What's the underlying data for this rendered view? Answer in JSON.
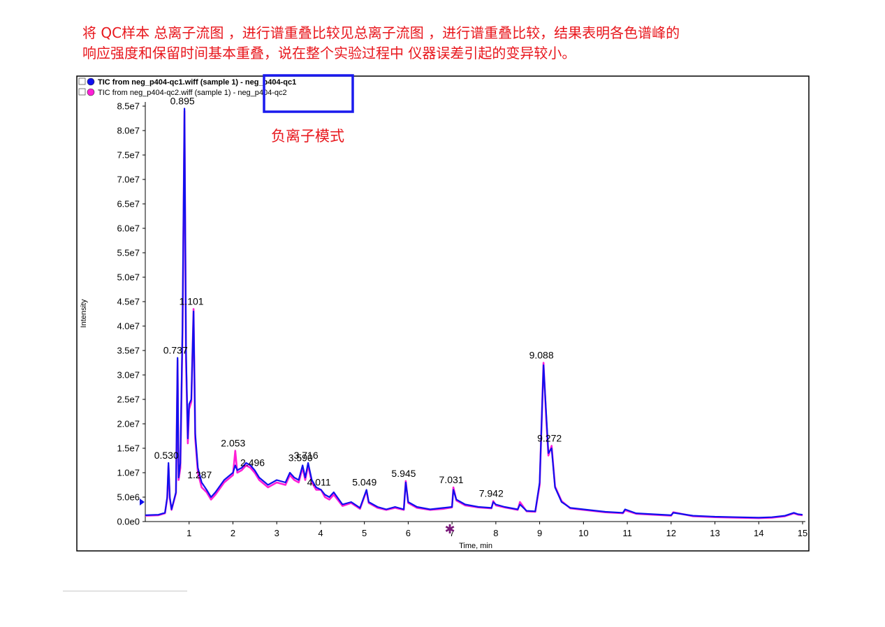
{
  "caption": {
    "line1": "将 QC样本 总离子流图 ，进行谱重叠比较见总离子流图 ，进行谱重叠比较，结果表明各色谱峰的",
    "line2": "响应强度和保留时间基本重叠，说在整个实验过程中 仪器误差引起的变异较小。"
  },
  "annotation": "负离子模式",
  "colors": {
    "caption": "#e8161c",
    "annotation": "#e8161c",
    "highlight_box": "#1a1aee",
    "series_qc1": "#1010ee",
    "series_qc2": "#ff1fd6"
  },
  "chart_data": {
    "type": "line",
    "xlabel": "Time, min",
    "ylabel": "Intensity",
    "xlim": [
      0,
      15
    ],
    "ylim": [
      0,
      85000000.0
    ],
    "x_ticks": [
      1,
      2,
      3,
      4,
      5,
      6,
      7,
      8,
      9,
      10,
      11,
      12,
      13,
      14,
      15
    ],
    "y_ticks": [
      "0.0e0",
      "5.0e6",
      "1.0e7",
      "1.5e7",
      "2.0e7",
      "2.5e7",
      "3.0e7",
      "3.5e7",
      "4.0e7",
      "4.5e7",
      "5.0e7",
      "5.5e7",
      "6.0e7",
      "6.5e7",
      "7.0e7",
      "7.5e7",
      "8.0e7",
      "8.5e7"
    ],
    "legend_position": "top-left",
    "series": [
      {
        "name": "TIC from neg_p404-qc1.wiff (sample 1) - neg_p404-qc1",
        "color": "#1010ee",
        "x": [
          0.0,
          0.3,
          0.45,
          0.5,
          0.53,
          0.56,
          0.6,
          0.7,
          0.737,
          0.76,
          0.8,
          0.85,
          0.895,
          0.93,
          0.97,
          1.0,
          1.05,
          1.101,
          1.14,
          1.2,
          1.287,
          1.4,
          1.5,
          1.6,
          1.8,
          2.0,
          2.053,
          2.1,
          2.2,
          2.3,
          2.4,
          2.496,
          2.6,
          2.8,
          3.0,
          3.2,
          3.3,
          3.4,
          3.5,
          3.59,
          3.65,
          3.716,
          3.8,
          3.9,
          4.011,
          4.1,
          4.2,
          4.3,
          4.5,
          4.7,
          4.9,
          5.049,
          5.1,
          5.3,
          5.5,
          5.7,
          5.9,
          5.945,
          6.0,
          6.2,
          6.5,
          6.8,
          7.0,
          7.031,
          7.1,
          7.3,
          7.6,
          7.9,
          7.942,
          8.0,
          8.2,
          8.5,
          8.55,
          8.7,
          8.9,
          9.0,
          9.088,
          9.15,
          9.2,
          9.272,
          9.35,
          9.5,
          9.7,
          10.0,
          10.5,
          10.9,
          10.95,
          11.2,
          11.6,
          12.0,
          12.05,
          12.5,
          13.0,
          13.5,
          14.0,
          14.3,
          14.6,
          14.8,
          14.9,
          15.0
        ],
        "y": [
          1300000.0,
          1400000.0,
          1800000.0,
          5000000.0,
          12000000.0,
          5000000.0,
          2500000.0,
          6000000.0,
          33500000.0,
          9000000.0,
          12000000.0,
          40000000.0,
          84500000.0,
          35000000.0,
          17000000.0,
          24000000.0,
          25000000.0,
          43000000.0,
          18000000.0,
          11000000.0,
          8000000.0,
          6500000.0,
          5000000.0,
          6000000.0,
          8500000.0,
          10000000.0,
          11500000.0,
          10500000.0,
          11000000.0,
          12000000.0,
          11500000.0,
          10500000.0,
          9000000.0,
          7500000.0,
          8500000.0,
          8000000.0,
          10000000.0,
          9000000.0,
          8500000.0,
          11500000.0,
          9000000.0,
          12000000.0,
          8500000.0,
          7000000.0,
          6500000.0,
          5500000.0,
          5000000.0,
          6000000.0,
          3500000.0,
          4000000.0,
          2800000.0,
          6500000.0,
          4000000.0,
          3000000.0,
          2500000.0,
          3000000.0,
          2500000.0,
          8000000.0,
          4000000.0,
          3000000.0,
          2500000.0,
          2800000.0,
          3000000.0,
          6500000.0,
          4500000.0,
          3500000.0,
          3000000.0,
          2800000.0,
          4000000.0,
          3500000.0,
          3000000.0,
          2500000.0,
          3500000.0,
          2200000.0,
          2100000.0,
          8000000.0,
          32000000.0,
          22000000.0,
          14000000.0,
          15000000.0,
          7000000.0,
          4000000.0,
          2800000.0,
          2500000.0,
          2000000.0,
          1800000.0,
          2500000.0,
          1700000.0,
          1500000.0,
          1300000.0,
          1800000.0,
          1200000.0,
          1000000.0,
          900000.0,
          800000.0,
          900000.0,
          1200000.0,
          1800000.0,
          1500000.0,
          1400000.0
        ]
      },
      {
        "name": "TIC from neg_p404-qc2.wiff (sample 1) - neg_p404-qc2",
        "color": "#ff1fd6",
        "x": [
          0.0,
          0.3,
          0.45,
          0.5,
          0.53,
          0.56,
          0.6,
          0.7,
          0.737,
          0.76,
          0.8,
          0.85,
          0.895,
          0.93,
          0.97,
          1.0,
          1.05,
          1.101,
          1.14,
          1.2,
          1.287,
          1.4,
          1.5,
          1.6,
          1.8,
          2.0,
          2.053,
          2.1,
          2.2,
          2.3,
          2.4,
          2.496,
          2.6,
          2.8,
          3.0,
          3.2,
          3.3,
          3.4,
          3.5,
          3.59,
          3.65,
          3.716,
          3.8,
          3.9,
          4.011,
          4.1,
          4.2,
          4.3,
          4.5,
          4.7,
          4.9,
          5.049,
          5.1,
          5.3,
          5.5,
          5.7,
          5.9,
          5.945,
          6.0,
          6.2,
          6.5,
          6.8,
          7.0,
          7.031,
          7.1,
          7.3,
          7.6,
          7.9,
          7.942,
          8.0,
          8.2,
          8.5,
          8.55,
          8.7,
          8.9,
          9.0,
          9.088,
          9.15,
          9.2,
          9.272,
          9.35,
          9.5,
          9.7,
          10.0,
          10.5,
          10.9,
          10.95,
          11.2,
          11.6,
          12.0,
          12.05,
          12.5,
          13.0,
          13.5,
          14.0,
          14.3,
          14.6,
          14.8,
          14.9,
          15.0
        ],
        "y": [
          1200000.0,
          1300000.0,
          1700000.0,
          4800000.0,
          11500000.0,
          4800000.0,
          2400000.0,
          5800000.0,
          33000000.0,
          8500000.0,
          11000000.0,
          39000000.0,
          84000000.0,
          33000000.0,
          16000000.0,
          23000000.0,
          24500000.0,
          43500000.0,
          17000000.0,
          10000000.0,
          7000000.0,
          6000000.0,
          4500000.0,
          5500000.0,
          8000000.0,
          9500000.0,
          14500000.0,
          10000000.0,
          10500000.0,
          11500000.0,
          11000000.0,
          10000000.0,
          8500000.0,
          7000000.0,
          8000000.0,
          7500000.0,
          9500000.0,
          8500000.0,
          8000000.0,
          11000000.0,
          8500000.0,
          11500000.0,
          8000000.0,
          6500000.0,
          6500000.0,
          5000000.0,
          4500000.0,
          5500000.0,
          3200000.0,
          3800000.0,
          2600000.0,
          6300000.0,
          3800000.0,
          2800000.0,
          2400000.0,
          2800000.0,
          2400000.0,
          8300000.0,
          3800000.0,
          2800000.0,
          2400000.0,
          2600000.0,
          2900000.0,
          7000000.0,
          4300000.0,
          3300000.0,
          2900000.0,
          2700000.0,
          4200000.0,
          3300000.0,
          2900000.0,
          2400000.0,
          4000000.0,
          2100000.0,
          2000000.0,
          7500000.0,
          32500000.0,
          21000000.0,
          13500000.0,
          15500000.0,
          7200000.0,
          4200000.0,
          2700000.0,
          2400000.0,
          1900000.0,
          1700000.0,
          2300000.0,
          1600000.0,
          1400000.0,
          1200000.0,
          1900000.0,
          1100000.0,
          900000.0,
          800000.0,
          700000.0,
          800000.0,
          1100000.0,
          1700000.0,
          1400000.0,
          1300000.0
        ]
      }
    ],
    "peak_labels": [
      {
        "text": "0.530",
        "x": 0.53,
        "y": 12000000.0
      },
      {
        "text": "0.737",
        "x": 0.737,
        "y": 33500000.0
      },
      {
        "text": "0.895",
        "x": 0.895,
        "y": 84500000.0
      },
      {
        "text": "1.101",
        "x": 1.101,
        "y": 43500000.0
      },
      {
        "text": "1.287",
        "x": 1.287,
        "y": 8000000.0
      },
      {
        "text": "2.053",
        "x": 2.053,
        "y": 14500000.0
      },
      {
        "text": "2.496",
        "x": 2.496,
        "y": 10500000.0
      },
      {
        "text": "3.590",
        "x": 3.59,
        "y": 11500000.0
      },
      {
        "text": "3.716",
        "x": 3.716,
        "y": 12000000.0
      },
      {
        "text": "4.011",
        "x": 4.011,
        "y": 6500000.0
      },
      {
        "text": "5.049",
        "x": 5.049,
        "y": 6500000.0
      },
      {
        "text": "5.945",
        "x": 5.945,
        "y": 8300000.0
      },
      {
        "text": "7.031",
        "x": 7.031,
        "y": 7000000.0
      },
      {
        "text": "7.942",
        "x": 7.942,
        "y": 4200000.0
      },
      {
        "text": "9.088",
        "x": 9.088,
        "y": 32500000.0
      },
      {
        "text": "9.272",
        "x": 9.272,
        "y": 15500000.0
      }
    ]
  }
}
